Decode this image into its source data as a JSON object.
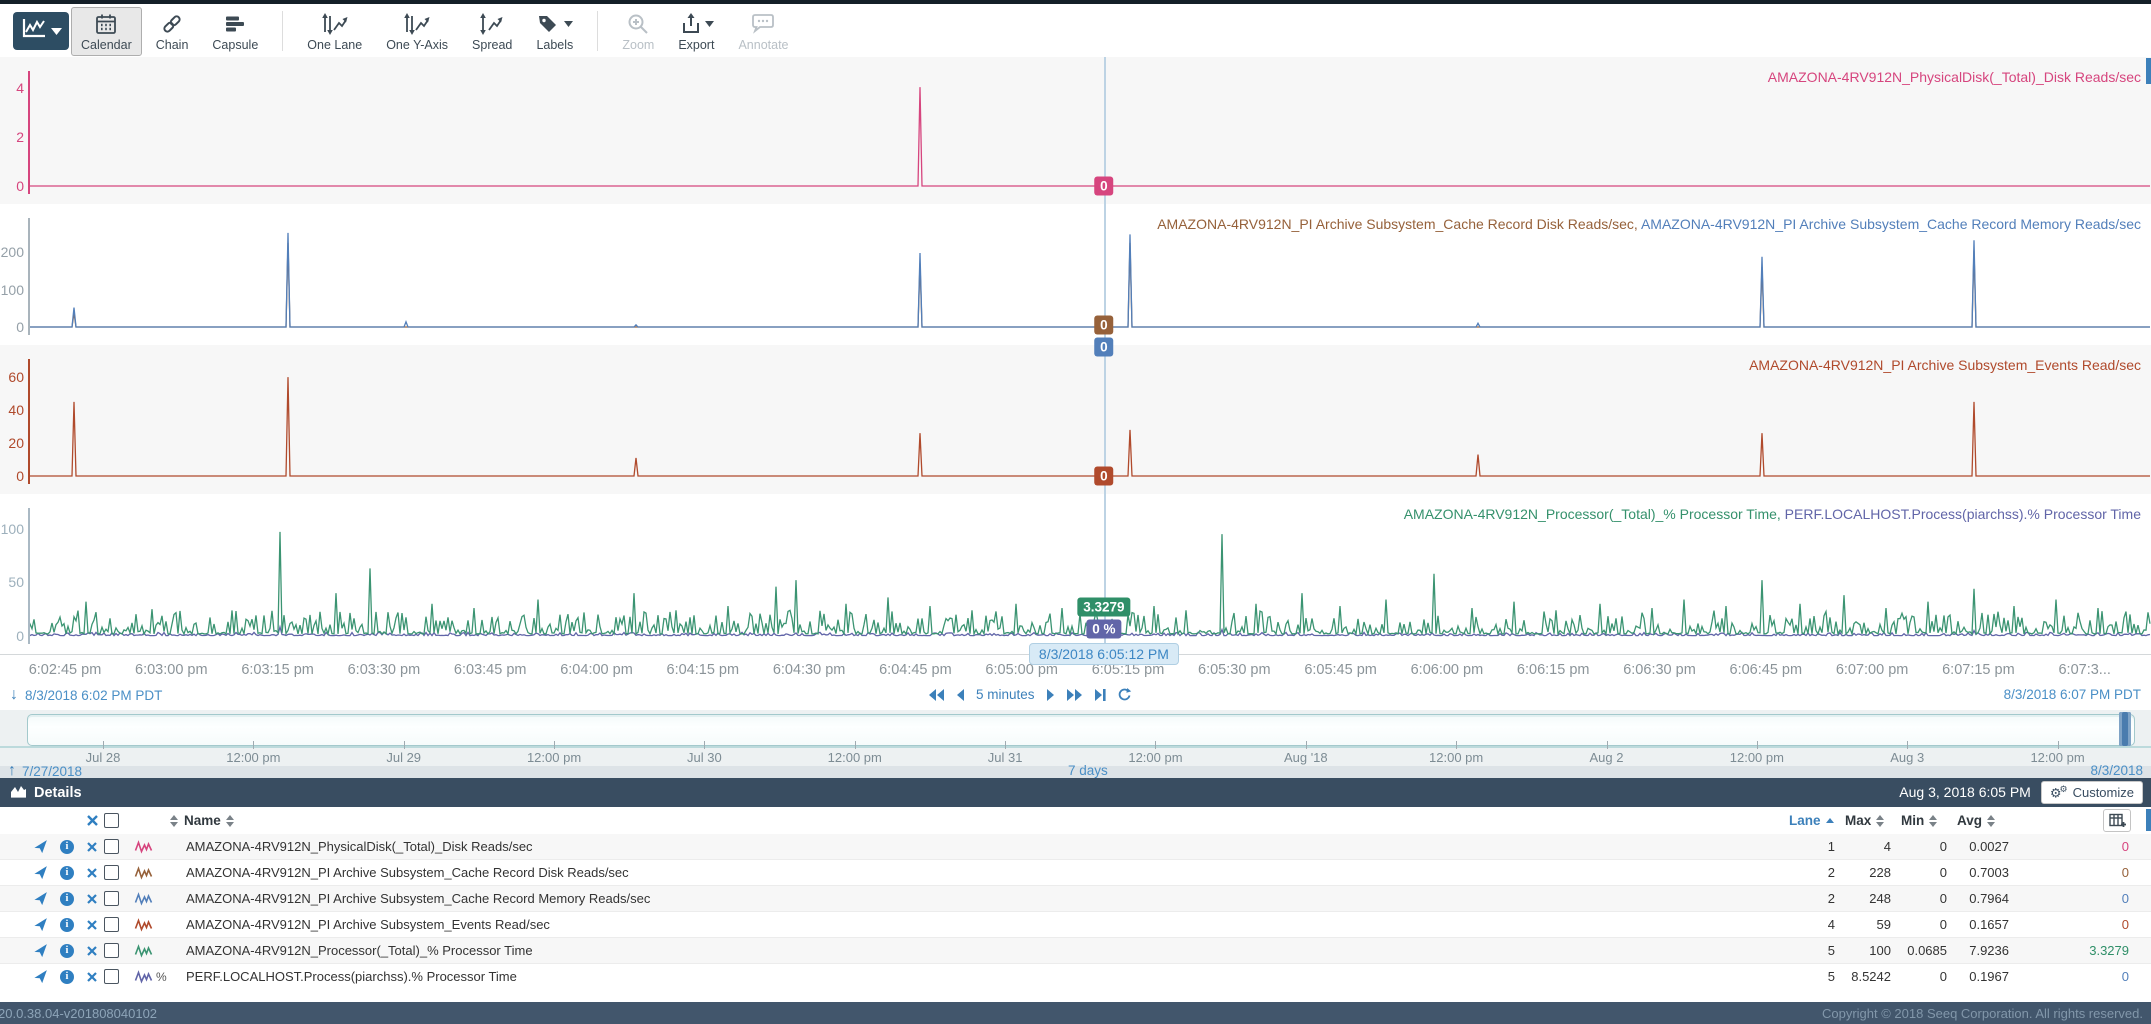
{
  "toolbar": {
    "main_button": {
      "icon": "trend-chart-icon",
      "caret": true
    },
    "groups": [
      {
        "items": [
          {
            "label": "Calendar",
            "icon": "calendar-icon",
            "selected": true,
            "enabled": true
          },
          {
            "label": "Chain",
            "icon": "chain-icon",
            "enabled": true
          },
          {
            "label": "Capsule",
            "icon": "capsule-icon",
            "enabled": true
          }
        ]
      },
      {
        "items": [
          {
            "label": "One Lane",
            "icon": "one-lane-icon",
            "enabled": true
          },
          {
            "label": "One Y-Axis",
            "icon": "one-y-axis-icon",
            "enabled": true
          },
          {
            "label": "Spread",
            "icon": "spread-icon",
            "enabled": true
          },
          {
            "label": "Labels",
            "icon": "labels-icon",
            "caret": true,
            "enabled": true
          }
        ]
      },
      {
        "items": [
          {
            "label": "Zoom",
            "icon": "zoom-icon",
            "enabled": false
          },
          {
            "label": "Export",
            "icon": "export-icon",
            "caret": true,
            "enabled": true
          },
          {
            "label": "Annotate",
            "icon": "annotate-icon",
            "enabled": false
          }
        ]
      }
    ]
  },
  "chart_data": {
    "type": "line",
    "x_axis": {
      "tick_labels": [
        "6:02:45 pm",
        "6:03:00 pm",
        "6:03:15 pm",
        "6:03:30 pm",
        "6:03:45 pm",
        "6:04:00 pm",
        "6:04:15 pm",
        "6:04:30 pm",
        "6:04:45 pm",
        "6:05:00 pm",
        "6:05:15 pm",
        "6:05:30 pm",
        "6:05:45 pm",
        "6:06:00 pm",
        "6:06:15 pm",
        "6:06:30 pm",
        "6:06:45 pm",
        "6:07:00 pm",
        "6:07:15 pm",
        "6:07:3..."
      ]
    },
    "cursor": {
      "x_frac": 0.5068,
      "timestamp": "8/3/2018 6:05:12 PM",
      "line_color": "#bdd3e4"
    },
    "nav": {
      "start": "8/3/2018 6:02 PM PDT",
      "step_label": "5 minutes",
      "end": "8/3/2018 6:07 PM PDT"
    },
    "lanes": [
      {
        "bg": "#f7f7f7",
        "axis_color": "#d6457e",
        "tick_color": "#d6457e",
        "ylim": [
          0,
          4.3
        ],
        "yticks": [
          4,
          2,
          0
        ],
        "label_parts": [
          {
            "text": "AMAZONA-4RV912N_PhysicalDisk(_Total)_Disk Reads/sec",
            "color": "#d6457e"
          }
        ],
        "series": [
          {
            "name": "AMAZONA-4RV912N_PhysicalDisk(_Total)_Disk Reads/sec",
            "color": "#d6457e",
            "base": 0,
            "amp": 0,
            "seed": 3,
            "spikes": [
              [
                0.4197,
                4.05
              ]
            ]
          }
        ],
        "badges": [
          {
            "text": "0",
            "color": "#d6457e",
            "dy": 0
          }
        ]
      },
      {
        "bg": "#ffffff",
        "axis_color": "#a9b4bc",
        "tick_color": "#95a0a8",
        "ylim": [
          0,
          265
        ],
        "yticks": [
          200,
          100,
          0
        ],
        "label_parts": [
          {
            "text": "AMAZONA-4RV912N_PI Archive Subsystem_Cache Record Disk Reads/sec, ",
            "color": "#96613a"
          },
          {
            "text": "AMAZONA-4RV912N_PI Archive Subsystem_Cache Record Memory Reads/sec",
            "color": "#527fba"
          }
        ],
        "series": [
          {
            "name": "AMAZONA-4RV912N_PI Archive Subsystem_Cache Record Disk Reads/sec",
            "color": "#96613a",
            "base": 0,
            "amp": 0,
            "seed": 5,
            "spikes": [
              [
                0.022,
                38
              ],
              [
                0.1225,
                225
              ],
              [
                0.4197,
                170
              ],
              [
                0.5195,
                225
              ],
              [
                0.817,
                160
              ],
              [
                0.917,
                205
              ]
            ]
          },
          {
            "name": "AMAZONA-4RV912N_PI Archive Subsystem_Cache Record Memory Reads/sec",
            "color": "#527fba",
            "base": 0,
            "amp": 0,
            "seed": 7,
            "spikes": [
              [
                0.022,
                52
              ],
              [
                0.1225,
                252
              ],
              [
                0.178,
                14
              ],
              [
                0.286,
                6
              ],
              [
                0.4197,
                198
              ],
              [
                0.5195,
                248
              ],
              [
                0.683,
                10
              ],
              [
                0.817,
                188
              ],
              [
                0.917,
                232
              ]
            ]
          }
        ],
        "badges": [
          {
            "text": "0",
            "color": "#96613a",
            "dy": -2
          },
          {
            "text": "0",
            "color": "#527fba",
            "dy": 20
          }
        ]
      },
      {
        "bg": "#f7f7f7",
        "axis_color": "#b04a2c",
        "tick_color": "#b04a2c",
        "ylim": [
          0,
          65
        ],
        "yticks": [
          60,
          40,
          20,
          0
        ],
        "label_parts": [
          {
            "text": "AMAZONA-4RV912N_PI Archive Subsystem_Events Read/sec",
            "color": "#b04a2c"
          }
        ],
        "series": [
          {
            "name": "AMAZONA-4RV912N_PI Archive Subsystem_Events Read/sec",
            "color": "#b04a2c",
            "base": 0,
            "amp": 0,
            "seed": 9,
            "spikes": [
              [
                0.022,
                45
              ],
              [
                0.1225,
                60
              ],
              [
                0.286,
                11
              ],
              [
                0.4197,
                26
              ],
              [
                0.5195,
                28
              ],
              [
                0.683,
                13
              ],
              [
                0.817,
                26
              ],
              [
                0.917,
                45
              ]
            ]
          }
        ],
        "badges": [
          {
            "text": "0",
            "color": "#b04a2c",
            "dy": 0
          }
        ]
      },
      {
        "bg": "#ffffff",
        "axis_color": "#aab9c4",
        "tick_color": "#9db0bc",
        "ylim": [
          0,
          110
        ],
        "yticks": [
          100,
          50,
          0
        ],
        "label_parts": [
          {
            "text": "AMAZONA-4RV912N_Processor(_Total)_% Processor Time, ",
            "color": "#35916c"
          },
          {
            "text": "PERF.LOCALHOST.Process(piarchss).% Processor Time",
            "color": "#6165a8"
          }
        ],
        "series": [
          {
            "name": "PERF.LOCALHOST.Process(piarchss).% Processor Time",
            "color": "#6165a8",
            "base": 0.4,
            "amp": 3,
            "seed": 21,
            "spikes": [
              [
                0.119,
                8.5
              ],
              [
                0.562,
                6
              ],
              [
                0.917,
                5
              ]
            ]
          },
          {
            "name": "AMAZONA-4RV912N_Processor(_Total)_% Processor Time",
            "color": "#3b9472",
            "base": 2,
            "amp": 22,
            "seed": 13,
            "spikes": [
              [
                0.027,
                32
              ],
              [
                0.058,
                25
              ],
              [
                0.119,
                97
              ],
              [
                0.145,
                40
              ],
              [
                0.161,
                63
              ],
              [
                0.19,
                30
              ],
              [
                0.21,
                26
              ],
              [
                0.24,
                34
              ],
              [
                0.262,
                22
              ],
              [
                0.285,
                40
              ],
              [
                0.305,
                24
              ],
              [
                0.33,
                28
              ],
              [
                0.352,
                46
              ],
              [
                0.362,
                52
              ],
              [
                0.385,
                30
              ],
              [
                0.405,
                36
              ],
              [
                0.425,
                28
              ],
              [
                0.445,
                24
              ],
              [
                0.465,
                30
              ],
              [
                0.487,
                26
              ],
              [
                0.53,
                28
              ],
              [
                0.545,
                24
              ],
              [
                0.562,
                95
              ],
              [
                0.578,
                30
              ],
              [
                0.6,
                40
              ],
              [
                0.618,
                28
              ],
              [
                0.64,
                34
              ],
              [
                0.662,
                58
              ],
              [
                0.68,
                26
              ],
              [
                0.7,
                32
              ],
              [
                0.72,
                24
              ],
              [
                0.74,
                30
              ],
              [
                0.765,
                26
              ],
              [
                0.78,
                34
              ],
              [
                0.8,
                28
              ],
              [
                0.817,
                52
              ],
              [
                0.835,
                30
              ],
              [
                0.855,
                38
              ],
              [
                0.875,
                26
              ],
              [
                0.895,
                32
              ],
              [
                0.917,
                44
              ],
              [
                0.935,
                28
              ],
              [
                0.955,
                34
              ],
              [
                0.975,
                26
              ],
              [
                0.99,
                20
              ]
            ]
          }
        ],
        "badges": [
          {
            "text": "3.3279",
            "color": "#2f8f68",
            "dy": -29
          },
          {
            "text": "0 %",
            "color": "#6165a8",
            "dy": -7
          }
        ],
        "cursor_dot": {
          "value": 3.3,
          "color": "#2f8f68"
        }
      }
    ]
  },
  "timeline": {
    "start_date": "7/27/2018",
    "duration_label": "7 days",
    "end_date": "8/3/2018",
    "tick_labels": [
      "Jul 28",
      "12:00 pm",
      "Jul 29",
      "12:00 pm",
      "Jul 30",
      "12:00 pm",
      "Jul 31",
      "12:00 pm",
      "Aug '18",
      "12:00 pm",
      "Aug 2",
      "12:00 pm",
      "Aug 3",
      "12:00 pm"
    ]
  },
  "details": {
    "title": "Details",
    "timestamp": "Aug 3, 2018 6:05 PM",
    "customize_label": "Customize",
    "columns": [
      "Name",
      "Lane",
      "Max",
      "Min",
      "Avg"
    ],
    "rows": [
      {
        "name": "AMAZONA-4RV912N_PhysicalDisk(_Total)_Disk Reads/sec",
        "color": "#d6457e",
        "percent": false,
        "lane": "1",
        "max": "4",
        "min": "0",
        "avg": "0.0027",
        "value": "0",
        "value_color": "#d6457e"
      },
      {
        "name": "AMAZONA-4RV912N_PI Archive Subsystem_Cache Record Disk Reads/sec",
        "color": "#96613a",
        "percent": false,
        "lane": "2",
        "max": "228",
        "min": "0",
        "avg": "0.7003",
        "value": "0",
        "value_color": "#96613a"
      },
      {
        "name": "AMAZONA-4RV912N_PI Archive Subsystem_Cache Record Memory Reads/sec",
        "color": "#527fba",
        "percent": false,
        "lane": "2",
        "max": "248",
        "min": "0",
        "avg": "0.7964",
        "value": "0",
        "value_color": "#527fba"
      },
      {
        "name": "AMAZONA-4RV912N_PI Archive Subsystem_Events Read/sec",
        "color": "#b04a2c",
        "percent": false,
        "lane": "4",
        "max": "59",
        "min": "0",
        "avg": "0.1657",
        "value": "0",
        "value_color": "#b04a2c"
      },
      {
        "name": "AMAZONA-4RV912N_Processor(_Total)_% Processor Time",
        "color": "#3b9472",
        "percent": false,
        "lane": "5",
        "max": "100",
        "min": "0.0685",
        "avg": "7.9236",
        "value": "3.3279",
        "value_color": "#2f8f68"
      },
      {
        "name": "PERF.LOCALHOST.Process(piarchss).% Processor Time",
        "color": "#6165a8",
        "percent": true,
        "lane": "5",
        "max": "8.5242",
        "min": "0",
        "avg": "0.1967",
        "value": "0",
        "value_color": "#527fba"
      }
    ]
  },
  "footer": {
    "version": "20.0.38.04-v201808040102",
    "copyright": "Copyright © 2018 Seeq Corporation. All rights reserved."
  }
}
